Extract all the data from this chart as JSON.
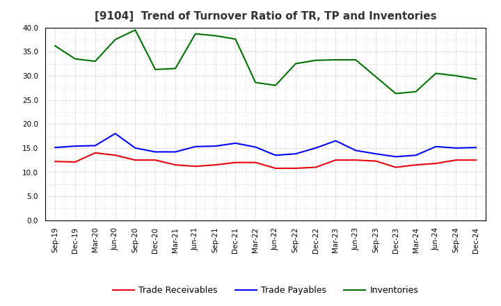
{
  "title": "[9104]  Trend of Turnover Ratio of TR, TP and Inventories",
  "x_labels": [
    "Sep-19",
    "Dec-19",
    "Mar-20",
    "Jun-20",
    "Sep-20",
    "Dec-20",
    "Mar-21",
    "Jun-21",
    "Sep-21",
    "Dec-21",
    "Mar-22",
    "Jun-22",
    "Sep-22",
    "Dec-22",
    "Mar-23",
    "Jun-23",
    "Sep-23",
    "Dec-23",
    "Mar-24",
    "Jun-24",
    "Sep-24",
    "Dec-24"
  ],
  "trade_receivables": [
    12.2,
    12.1,
    14.0,
    13.5,
    12.5,
    12.5,
    11.5,
    11.2,
    11.5,
    12.0,
    12.0,
    10.8,
    10.8,
    11.0,
    12.5,
    12.5,
    12.3,
    11.0,
    11.5,
    11.8,
    12.5,
    12.5
  ],
  "trade_payables": [
    15.1,
    15.4,
    15.5,
    18.0,
    15.0,
    14.2,
    14.2,
    15.3,
    15.4,
    16.0,
    15.2,
    13.5,
    13.8,
    15.0,
    16.5,
    14.5,
    13.8,
    13.2,
    13.5,
    15.3,
    15.0,
    15.1
  ],
  "inventories": [
    36.2,
    33.5,
    33.0,
    37.5,
    39.5,
    31.3,
    31.5,
    38.7,
    38.3,
    37.6,
    28.6,
    28.0,
    32.5,
    33.2,
    33.3,
    33.3,
    29.8,
    26.3,
    26.7,
    30.5,
    30.0,
    29.3
  ],
  "color_tr": "#e8000d",
  "color_tp": "#0000ff",
  "color_inv": "#007000",
  "ylim": [
    0,
    40
  ],
  "yticks": [
    0.0,
    5.0,
    10.0,
    15.0,
    20.0,
    25.0,
    30.0,
    35.0,
    40.0
  ],
  "legend_labels": [
    "Trade Receivables",
    "Trade Payables",
    "Inventories"
  ],
  "background_color": "#ffffff",
  "plot_bg_color": "#ffffff",
  "title_fontsize": 11,
  "legend_fontsize": 9,
  "tick_fontsize": 7.5
}
